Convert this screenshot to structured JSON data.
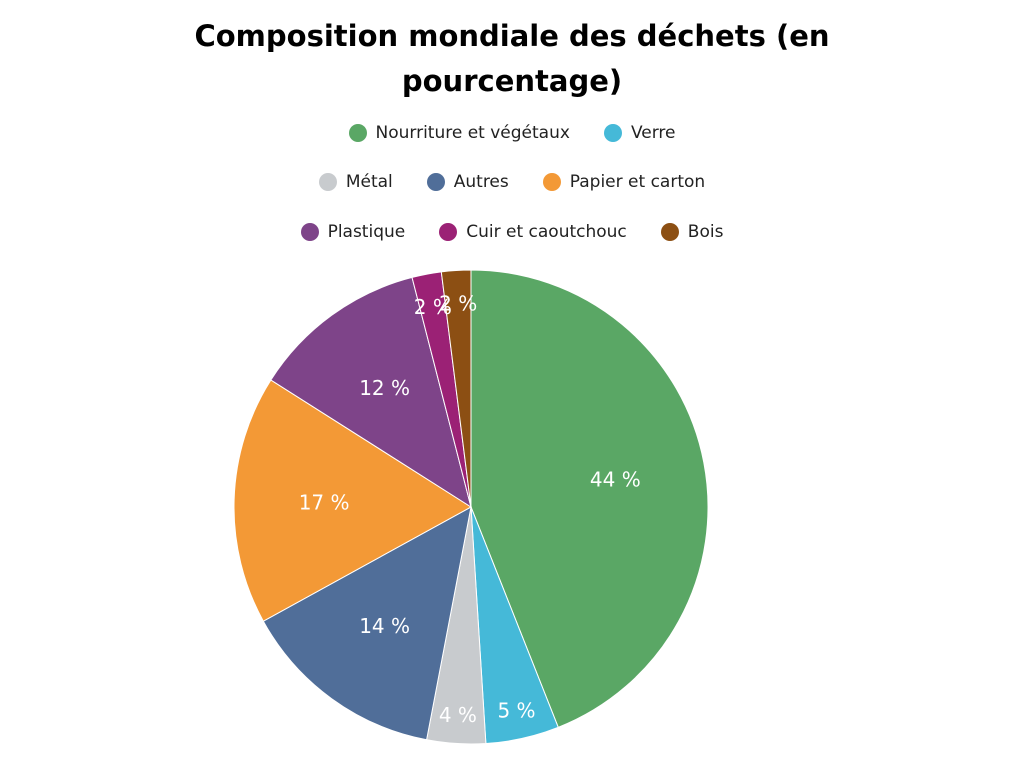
{
  "chart_data": {
    "type": "pie",
    "title_lines": [
      "Composition mondiale des déchets (en",
      "pourcentage)"
    ],
    "slices": [
      {
        "name": "Nourriture et végétaux",
        "value": 44,
        "label": "44 %",
        "color": "#5aa765"
      },
      {
        "name": "Verre",
        "value": 5,
        "label": "5 %",
        "color": "#45b9d8"
      },
      {
        "name": "Métal",
        "value": 4,
        "label": "4 %",
        "color": "#c8cbce"
      },
      {
        "name": "Autres",
        "value": 14,
        "label": "14 %",
        "color": "#506e99"
      },
      {
        "name": "Papier et carton",
        "value": 17,
        "label": "17 %",
        "color": "#f39936"
      },
      {
        "name": "Plastique",
        "value": 12,
        "label": "12 %",
        "color": "#7e4489"
      },
      {
        "name": "Cuir et caoutchouc",
        "value": 2,
        "label": "2 %",
        "color": "#9b2175"
      },
      {
        "name": "Bois",
        "value": 2,
        "label": "2 %",
        "color": "#8c4f13"
      }
    ],
    "legend": {
      "placement": "top",
      "rows": [
        [
          "Nourriture et végétaux",
          "Verre"
        ],
        [
          "Métal",
          "Autres",
          "Papier et carton"
        ],
        [
          "Plastique",
          "Cuir et caoutchouc",
          "Bois"
        ]
      ]
    }
  }
}
